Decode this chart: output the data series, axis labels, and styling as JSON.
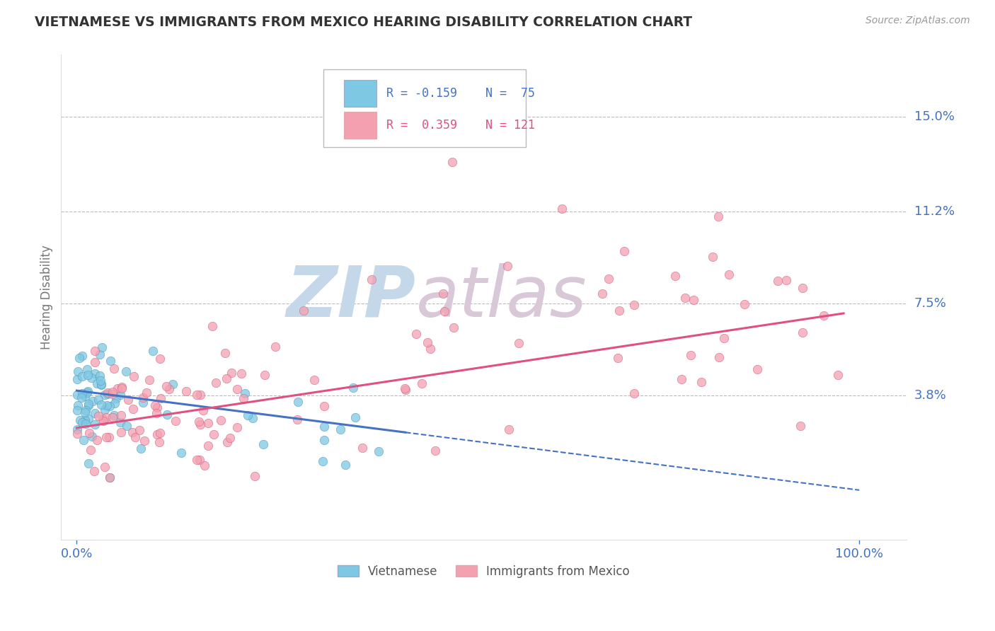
{
  "title": "VIETNAMESE VS IMMIGRANTS FROM MEXICO HEARING DISABILITY CORRELATION CHART",
  "source_text": "Source: ZipAtlas.com",
  "ylabel": "Hearing Disability",
  "x_tick_labels": [
    "0.0%",
    "100.0%"
  ],
  "y_ticks": [
    0.038,
    0.075,
    0.112,
    0.15
  ],
  "y_tick_labels": [
    "3.8%",
    "7.5%",
    "11.2%",
    "15.0%"
  ],
  "color_viet": "#7ec8e3",
  "color_mex": "#f4a0b0",
  "color_viet_line": "#4472c4",
  "color_mex_line": "#e05080",
  "watermark_zip_color": "#c5d8ea",
  "watermark_atlas_color": "#d8c8d8",
  "background_color": "#ffffff",
  "grid_color": "#bbbbbb",
  "title_color": "#333333",
  "axis_label_color": "#4472c4",
  "legend_text_color_viet": "#4472c4",
  "legend_text_color_mex": "#e05080"
}
